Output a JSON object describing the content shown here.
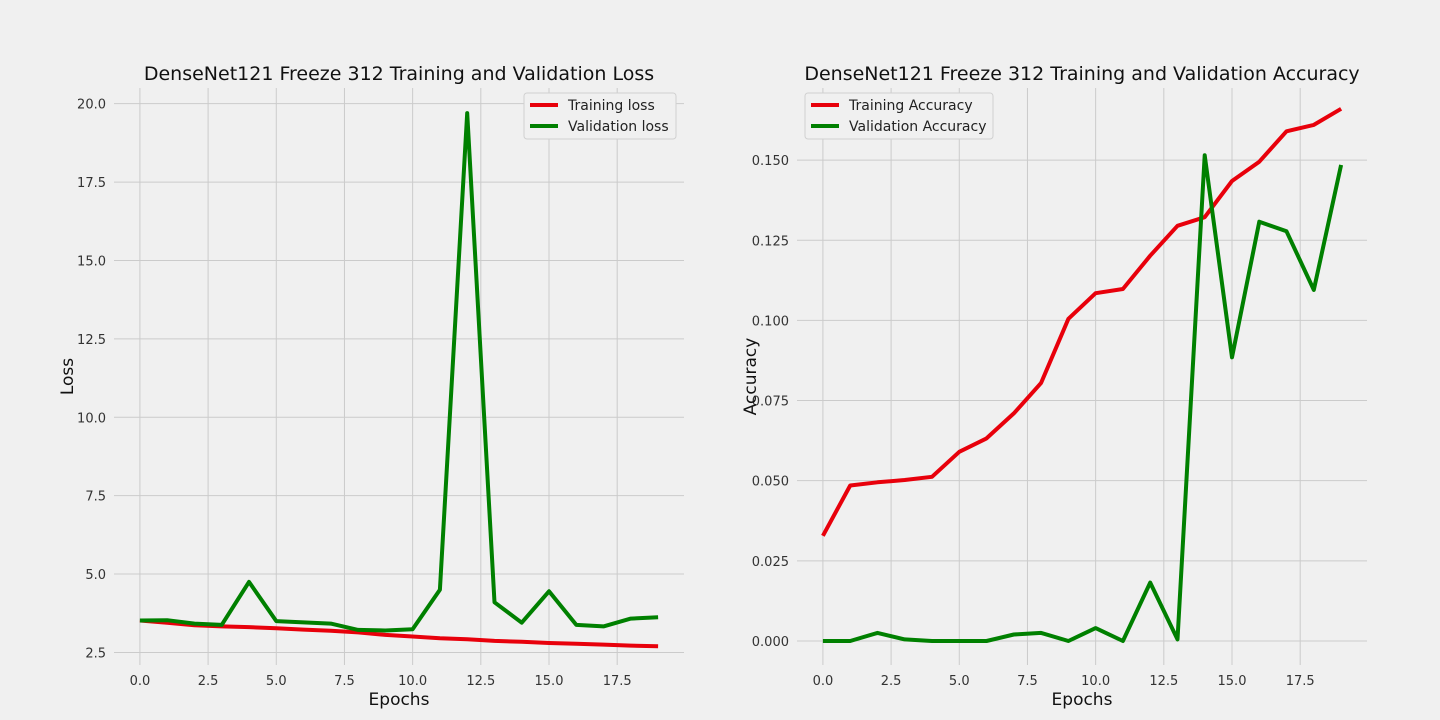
{
  "chart_data": [
    {
      "type": "line",
      "title": "DenseNet121 Freeze 312 Training and Validation Loss",
      "xlabel": "Epochs",
      "ylabel": "Loss",
      "xlim": [
        -0.95,
        19.95
      ],
      "ylim": [
        2.1,
        20.5
      ],
      "xticks": [
        0.0,
        2.5,
        5.0,
        7.5,
        10.0,
        12.5,
        15.0,
        17.5
      ],
      "xtick_labels": [
        "0.0",
        "2.5",
        "5.0",
        "7.5",
        "10.0",
        "12.5",
        "15.0",
        "17.5"
      ],
      "yticks": [
        2.5,
        5.0,
        7.5,
        10.0,
        12.5,
        15.0,
        17.5,
        20.0
      ],
      "ytick_labels": [
        "2.5",
        "5.0",
        "7.5",
        "10.0",
        "12.5",
        "15.0",
        "17.5",
        "20.0"
      ],
      "grid": true,
      "legend_position": "upper right",
      "x": [
        0,
        1,
        2,
        3,
        4,
        5,
        6,
        7,
        8,
        9,
        10,
        11,
        12,
        13,
        14,
        15,
        16,
        17,
        18,
        19
      ],
      "series": [
        {
          "name": "Training loss",
          "color": "#e8000b",
          "values": [
            3.52,
            3.45,
            3.37,
            3.33,
            3.31,
            3.27,
            3.23,
            3.19,
            3.14,
            3.06,
            3.01,
            2.95,
            2.92,
            2.87,
            2.84,
            2.8,
            2.78,
            2.75,
            2.72,
            2.7
          ]
        },
        {
          "name": "Validation loss",
          "color": "#008000",
          "values": [
            3.52,
            3.53,
            3.42,
            3.38,
            4.75,
            3.5,
            3.46,
            3.42,
            3.22,
            3.2,
            3.24,
            4.5,
            19.7,
            4.1,
            3.45,
            4.45,
            3.38,
            3.33,
            3.58,
            3.62
          ]
        }
      ]
    },
    {
      "type": "line",
      "title": "DenseNet121 Freeze 312 Training and Validation Accuracy",
      "xlabel": "Epochs",
      "ylabel": "Accuracy",
      "xlim": [
        -0.95,
        19.95
      ],
      "ylim": [
        -0.0075,
        0.1725
      ],
      "xticks": [
        0.0,
        2.5,
        5.0,
        7.5,
        10.0,
        12.5,
        15.0,
        17.5
      ],
      "xtick_labels": [
        "0.0",
        "2.5",
        "5.0",
        "7.5",
        "10.0",
        "12.5",
        "15.0",
        "17.5"
      ],
      "yticks": [
        0.0,
        0.025,
        0.05,
        0.075,
        0.1,
        0.125,
        0.15
      ],
      "ytick_labels": [
        "0.000",
        "0.025",
        "0.050",
        "0.075",
        "0.100",
        "0.125",
        "0.150"
      ],
      "grid": true,
      "legend_position": "upper left",
      "x": [
        0,
        1,
        2,
        3,
        4,
        5,
        6,
        7,
        8,
        9,
        10,
        11,
        12,
        13,
        14,
        15,
        16,
        17,
        18,
        19
      ],
      "series": [
        {
          "name": "Training Accuracy",
          "color": "#e8000b",
          "values": [
            0.0328,
            0.0485,
            0.0495,
            0.0502,
            0.0512,
            0.059,
            0.0632,
            0.071,
            0.0805,
            0.1005,
            0.1085,
            0.1098,
            0.1202,
            0.1295,
            0.1322,
            0.1435,
            0.1495,
            0.159,
            0.161,
            0.166
          ]
        },
        {
          "name": "Validation Accuracy",
          "color": "#008000",
          "values": [
            0.0,
            0.0,
            0.0025,
            0.0005,
            0.0,
            0.0,
            0.0,
            0.002,
            0.0025,
            0.0,
            0.004,
            0.0,
            0.0182,
            0.0005,
            0.1515,
            0.0885,
            0.1308,
            0.1278,
            0.1095,
            0.1485
          ]
        }
      ]
    }
  ]
}
